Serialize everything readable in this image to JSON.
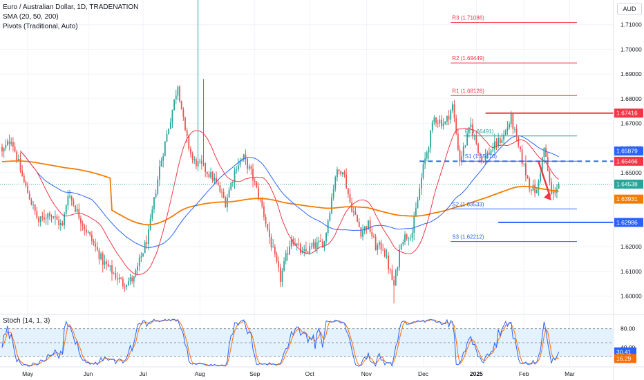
{
  "legend": {
    "title": "Euro / Australian Dollar, 1D, TRADENATION",
    "sma": "SMA (20, 50, 200)",
    "pivots": "Pivots (Traditional, Auto)"
  },
  "currency": "AUD",
  "stoch_title": "Stoch (14, 1, 3)",
  "colors": {
    "up": "#26a69a",
    "down": "#ef5350",
    "text": "#131722",
    "sma20": "#f23645",
    "sma50": "#2962ff",
    "sma200": "#f57c00",
    "resistance": "#f23645",
    "support": "#2962ff",
    "grid": "#f0f3fa",
    "stoch_k": "#2962ff",
    "stoch_d": "#ff6d00",
    "stoch_band": "#e3f2fd"
  },
  "chart_data": {
    "type": "candlestick",
    "y_ticks": [
      "1.71000",
      "1.70000",
      "1.69000",
      "1.68000",
      "1.67000",
      "1.66000",
      "1.65000",
      "1.64000",
      "1.63000",
      "1.62000",
      "1.61000",
      "1.60000"
    ],
    "x_ticks": [
      "May",
      "Jun",
      "Jul",
      "Aug",
      "Sep",
      "Oct",
      "Nov",
      "Dec",
      "2025",
      "Feb",
      "Mar"
    ],
    "ylim": [
      1.594,
      1.72
    ],
    "start": 1.6605,
    "anchors": [
      [
        0,
        1.658
      ],
      [
        5,
        1.664
      ],
      [
        12,
        1.646
      ],
      [
        20,
        1.63
      ],
      [
        26,
        1.634
      ],
      [
        33,
        1.628
      ],
      [
        36,
        1.642
      ],
      [
        45,
        1.628
      ],
      [
        55,
        1.614
      ],
      [
        60,
        1.61
      ],
      [
        66,
        1.605
      ],
      [
        72,
        1.607
      ],
      [
        80,
        1.625
      ],
      [
        86,
        1.652
      ],
      [
        92,
        1.672
      ],
      [
        96,
        1.686
      ],
      [
        100,
        1.666
      ],
      [
        104,
        1.655
      ],
      [
        110,
        1.652
      ],
      [
        116,
        1.647
      ],
      [
        122,
        1.638
      ],
      [
        128,
        1.653
      ],
      [
        132,
        1.656
      ],
      [
        136,
        1.65
      ],
      [
        142,
        1.636
      ],
      [
        148,
        1.618
      ],
      [
        152,
        1.607
      ],
      [
        158,
        1.624
      ],
      [
        164,
        1.617
      ],
      [
        170,
        1.62
      ],
      [
        176,
        1.622
      ],
      [
        182,
        1.649
      ],
      [
        186,
        1.652
      ],
      [
        190,
        1.638
      ],
      [
        196,
        1.626
      ],
      [
        200,
        1.629
      ],
      [
        204,
        1.62
      ],
      [
        208,
        1.62
      ],
      [
        214,
        1.604
      ],
      [
        218,
        1.623
      ],
      [
        224,
        1.626
      ],
      [
        230,
        1.652
      ],
      [
        236,
        1.672
      ],
      [
        242,
        1.67
      ],
      [
        246,
        1.677
      ],
      [
        250,
        1.655
      ],
      [
        256,
        1.669
      ],
      [
        262,
        1.655
      ],
      [
        268,
        1.66
      ],
      [
        274,
        1.665
      ],
      [
        278,
        1.672
      ],
      [
        282,
        1.66
      ],
      [
        288,
        1.645
      ],
      [
        292,
        1.642
      ],
      [
        296,
        1.66
      ],
      [
        300,
        1.641
      ],
      [
        304,
        1.6454
      ]
    ],
    "pivots": [
      {
        "name": "R3",
        "label": "R3 (1.71086)",
        "value": 1.71086,
        "x1": 245,
        "color": "#f23645"
      },
      {
        "name": "R2",
        "label": "R2 (1.69449)",
        "value": 1.69449,
        "x1": 245,
        "color": "#f23645"
      },
      {
        "name": "R1",
        "label": "R1 (1.68128)",
        "value": 1.68128,
        "x1": 245,
        "color": "#f23645"
      },
      {
        "name": "P",
        "label": "P (1.66491)",
        "value": 1.66491,
        "x1": 252,
        "color": "#26a69a"
      },
      {
        "name": "S1",
        "label": "S1 (1.65470)",
        "value": 1.6547,
        "x1": 252,
        "color": "#2962ff"
      },
      {
        "name": "S2",
        "label": "S2 (1.63533)",
        "value": 1.63533,
        "x1": 245,
        "color": "#2962ff"
      },
      {
        "name": "S3",
        "label": "S3 (1.62212)",
        "value": 1.62212,
        "x1": 245,
        "color": "#2962ff"
      }
    ],
    "levels": [
      {
        "value": 1.67416,
        "x0": 264,
        "color": "#f23645",
        "dashed": false
      },
      {
        "value": 1.65466,
        "x0": 228,
        "color": "#2962ff",
        "dashed": true
      },
      {
        "value": 1.62986,
        "x0": 271,
        "color": "#2962ff",
        "dashed": false
      }
    ],
    "price_labels": [
      {
        "value": 1.67416,
        "text": "1.67416",
        "color": "#f23645"
      },
      {
        "value": 1.65879,
        "text": "1.65879",
        "color": "#2962ff"
      },
      {
        "value": 1.65466,
        "text": "1.65466",
        "color": "#f23645"
      },
      {
        "value": 1.64538,
        "text": "1.64538",
        "color": "#26a69a"
      },
      {
        "value": 1.63931,
        "text": "1.63931",
        "color": "#f57c00"
      },
      {
        "value": 1.62986,
        "text": "1.62986",
        "color": "#2962ff"
      }
    ],
    "last_price": 1.64538,
    "arrow": {
      "from": [
        293,
        1.6545
      ],
      "to": [
        300,
        1.6388
      ]
    },
    "stochastic": {
      "levels": [
        80,
        20
      ],
      "y_ticks": [
        "80.00",
        "40.00"
      ],
      "k": 30.41,
      "d": 16.29,
      "k_label": "30.41",
      "d_label": "16.29",
      "ylim": [
        0,
        100
      ]
    }
  }
}
